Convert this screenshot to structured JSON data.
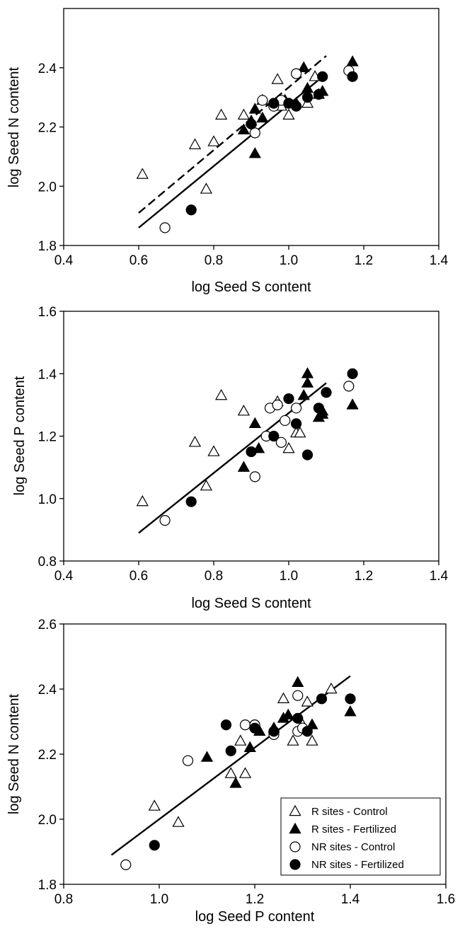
{
  "chart_data": [
    {
      "type": "scatter",
      "xlabel": "log Seed S content",
      "ylabel": "log Seed N content",
      "xlim": [
        0.4,
        1.4
      ],
      "ylim": [
        1.8,
        2.6
      ],
      "xticks": [
        "0.4",
        "0.6",
        "0.8",
        "1.0",
        "1.2",
        "1.4"
      ],
      "yticks": [
        "1.8",
        "2.0",
        "2.2",
        "2.4"
      ],
      "grid": false,
      "series": [
        {
          "name": "R sites - Control",
          "marker": "triangle-open",
          "points": [
            [
              0.61,
              2.04
            ],
            [
              0.75,
              2.14
            ],
            [
              0.78,
              1.99
            ],
            [
              0.8,
              2.15
            ],
            [
              0.82,
              2.24
            ],
            [
              0.88,
              2.24
            ],
            [
              0.93,
              2.29
            ],
            [
              0.97,
              2.36
            ],
            [
              0.98,
              2.27
            ],
            [
              1.0,
              2.24
            ],
            [
              1.05,
              2.28
            ],
            [
              1.07,
              2.37
            ]
          ]
        },
        {
          "name": "R sites - Fertilized",
          "marker": "triangle-filled",
          "points": [
            [
              0.88,
              2.19
            ],
            [
              0.9,
              2.22
            ],
            [
              0.91,
              2.11
            ],
            [
              0.91,
              2.26
            ],
            [
              0.93,
              2.23
            ],
            [
              0.99,
              2.29
            ],
            [
              1.02,
              2.28
            ],
            [
              1.04,
              2.4
            ],
            [
              1.05,
              2.33
            ],
            [
              1.08,
              2.31
            ],
            [
              1.09,
              2.32
            ],
            [
              1.17,
              2.42
            ]
          ]
        },
        {
          "name": "NR sites - Control",
          "marker": "circle-open",
          "points": [
            [
              0.67,
              1.86
            ],
            [
              0.91,
              2.18
            ],
            [
              0.93,
              2.29
            ],
            [
              0.96,
              2.27
            ],
            [
              0.98,
              2.29
            ],
            [
              1.0,
              2.28
            ],
            [
              1.02,
              2.38
            ],
            [
              1.16,
              2.39
            ]
          ]
        },
        {
          "name": "NR sites - Fertilized",
          "marker": "circle-filled",
          "points": [
            [
              0.74,
              1.92
            ],
            [
              0.9,
              2.21
            ],
            [
              0.96,
              2.28
            ],
            [
              1.0,
              2.28
            ],
            [
              1.02,
              2.27
            ],
            [
              1.05,
              2.3
            ],
            [
              1.08,
              2.31
            ],
            [
              1.09,
              2.37
            ],
            [
              1.17,
              2.37
            ]
          ]
        }
      ],
      "fit_lines": [
        {
          "style": "dashed",
          "from": [
            0.6,
            1.91
          ],
          "to": [
            1.1,
            2.44
          ]
        },
        {
          "style": "solid",
          "from": [
            0.6,
            1.86
          ],
          "to": [
            1.1,
            2.38
          ]
        }
      ]
    },
    {
      "type": "scatter",
      "xlabel": "log Seed S content",
      "ylabel": "log Seed P content",
      "xlim": [
        0.4,
        1.4
      ],
      "ylim": [
        0.8,
        1.6
      ],
      "xticks": [
        "0.4",
        "0.6",
        "0.8",
        "1.0",
        "1.2",
        "1.4"
      ],
      "yticks": [
        "0.8",
        "1.0",
        "1.2",
        "1.4",
        "1.6"
      ],
      "grid": false,
      "series": [
        {
          "name": "R sites - Control",
          "marker": "triangle-open",
          "points": [
            [
              0.61,
              0.99
            ],
            [
              0.75,
              1.18
            ],
            [
              0.78,
              1.04
            ],
            [
              0.8,
              1.15
            ],
            [
              0.82,
              1.33
            ],
            [
              0.88,
              1.28
            ],
            [
              0.97,
              1.31
            ],
            [
              1.0,
              1.16
            ],
            [
              1.02,
              1.21
            ],
            [
              1.03,
              1.21
            ]
          ]
        },
        {
          "name": "R sites - Fertilized",
          "marker": "triangle-filled",
          "points": [
            [
              0.88,
              1.1
            ],
            [
              0.91,
              1.24
            ],
            [
              0.92,
              1.16
            ],
            [
              1.04,
              1.33
            ],
            [
              1.05,
              1.37
            ],
            [
              1.05,
              1.4
            ],
            [
              1.08,
              1.26
            ],
            [
              1.09,
              1.28
            ],
            [
              1.09,
              1.27
            ],
            [
              1.17,
              1.3
            ]
          ]
        },
        {
          "name": "NR sites - Control",
          "marker": "circle-open",
          "points": [
            [
              0.67,
              0.93
            ],
            [
              0.91,
              1.07
            ],
            [
              0.94,
              1.2
            ],
            [
              0.95,
              1.29
            ],
            [
              0.97,
              1.3
            ],
            [
              0.98,
              1.18
            ],
            [
              0.99,
              1.25
            ],
            [
              1.02,
              1.29
            ],
            [
              1.16,
              1.36
            ]
          ]
        },
        {
          "name": "NR sites - Fertilized",
          "marker": "circle-filled",
          "points": [
            [
              0.74,
              0.99
            ],
            [
              0.9,
              1.15
            ],
            [
              0.96,
              1.2
            ],
            [
              1.0,
              1.32
            ],
            [
              1.02,
              1.24
            ],
            [
              1.05,
              1.14
            ],
            [
              1.08,
              1.29
            ],
            [
              1.1,
              1.34
            ],
            [
              1.17,
              1.4
            ]
          ]
        }
      ],
      "fit_lines": [
        {
          "style": "solid",
          "from": [
            0.6,
            0.89
          ],
          "to": [
            1.1,
            1.37
          ]
        }
      ]
    },
    {
      "type": "scatter",
      "xlabel": "log Seed P content",
      "ylabel": "log Seed N content",
      "xlim": [
        0.8,
        1.6
      ],
      "ylim": [
        1.8,
        2.6
      ],
      "xticks": [
        "0.8",
        "1.0",
        "1.2",
        "1.4",
        "1.6"
      ],
      "yticks": [
        "1.8",
        "2.0",
        "2.2",
        "2.4",
        "2.6"
      ],
      "grid": false,
      "legend": {
        "placement": "bottom-right",
        "entries": [
          "R sites - Control",
          "R sites - Fertilized",
          "NR sites - Control",
          "NR sites - Fertilized"
        ]
      },
      "series": [
        {
          "name": "R sites - Control",
          "marker": "triangle-open",
          "points": [
            [
              0.99,
              2.04
            ],
            [
              1.04,
              1.99
            ],
            [
              1.15,
              2.14
            ],
            [
              1.17,
              2.24
            ],
            [
              1.18,
              2.14
            ],
            [
              1.21,
              2.27
            ],
            [
              1.26,
              2.37
            ],
            [
              1.28,
              2.24
            ],
            [
              1.3,
              2.29
            ],
            [
              1.31,
              2.36
            ],
            [
              1.32,
              2.24
            ],
            [
              1.36,
              2.4
            ]
          ]
        },
        {
          "name": "R sites - Fertilized",
          "marker": "triangle-filled",
          "points": [
            [
              1.1,
              2.19
            ],
            [
              1.16,
              2.11
            ],
            [
              1.19,
              2.22
            ],
            [
              1.21,
              2.27
            ],
            [
              1.24,
              2.28
            ],
            [
              1.26,
              2.31
            ],
            [
              1.27,
              2.32
            ],
            [
              1.29,
              2.42
            ],
            [
              1.32,
              2.29
            ],
            [
              1.4,
              2.33
            ]
          ]
        },
        {
          "name": "NR sites - Control",
          "marker": "circle-open",
          "points": [
            [
              0.93,
              1.86
            ],
            [
              1.06,
              2.18
            ],
            [
              1.18,
              2.29
            ],
            [
              1.2,
              2.29
            ],
            [
              1.2,
              2.29
            ],
            [
              1.24,
              2.26
            ],
            [
              1.29,
              2.27
            ],
            [
              1.29,
              2.38
            ],
            [
              1.3,
              2.28
            ]
          ]
        },
        {
          "name": "NR sites - Fertilized",
          "marker": "circle-filled",
          "points": [
            [
              0.99,
              1.92
            ],
            [
              1.14,
              2.29
            ],
            [
              1.15,
              2.21
            ],
            [
              1.2,
              2.28
            ],
            [
              1.24,
              2.27
            ],
            [
              1.29,
              2.31
            ],
            [
              1.31,
              2.27
            ],
            [
              1.34,
              2.37
            ],
            [
              1.4,
              2.37
            ]
          ]
        }
      ],
      "fit_lines": [
        {
          "style": "solid",
          "from": [
            0.9,
            1.89
          ],
          "to": [
            1.4,
            2.44
          ]
        }
      ]
    }
  ]
}
